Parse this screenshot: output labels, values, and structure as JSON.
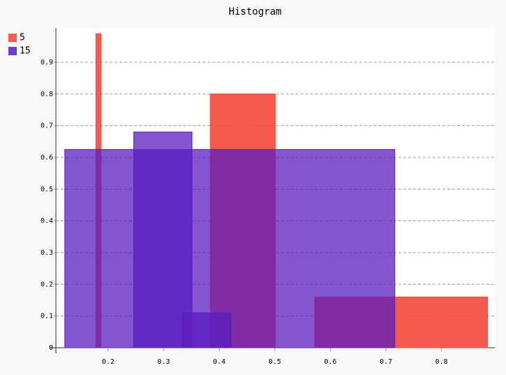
{
  "chart_data": {
    "type": "histogram",
    "title": "Histogram",
    "series": [
      {
        "name": "5",
        "color": "#f44336",
        "bars": [
          {
            "height": 0.99,
            "start": 0.178,
            "end": 0.187
          },
          {
            "height": 0.8,
            "start": 0.384,
            "end": 0.501
          },
          {
            "height": 0.16,
            "start": 0.572,
            "end": 0.883
          }
        ]
      },
      {
        "name": "15",
        "color": "#5a1ec0",
        "bars": [
          {
            "height": 0.625,
            "start": 0.122,
            "end": 0.716
          },
          {
            "height": 0.68,
            "start": 0.246,
            "end": 0.351
          },
          {
            "height": 0.11,
            "start": 0.333,
            "end": 0.421
          }
        ]
      }
    ],
    "xlim": [
      0.106,
      0.896
    ],
    "xticks": [
      0.2,
      0.3,
      0.4,
      0.5,
      0.6,
      0.7,
      0.8
    ],
    "ylim": [
      0,
      1.008
    ],
    "yticks": [
      0,
      0.1,
      0.2,
      0.3,
      0.4,
      0.5,
      0.6,
      0.7,
      0.8,
      0.9
    ],
    "grid": true,
    "legend": "top-left"
  }
}
